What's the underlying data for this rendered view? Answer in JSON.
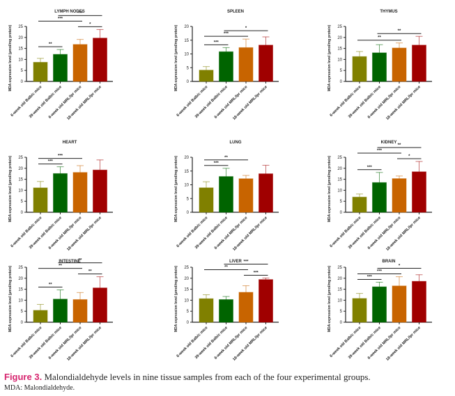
{
  "caption": {
    "figure_label": "Figure 3.",
    "text": "Malondialdehyde levels in nine tissue samples from each of the four experimental groups.",
    "abbreviation": "MDA: Malondialdehyde."
  },
  "chart_data": [
    {
      "type": "bar",
      "title": "LYMPH NODES",
      "categories": [
        "6-week old Balb/c mice",
        "39-week old Balb/c mice",
        "6-week old MRL/lpr mice",
        "18-week old MRL/lpr mice"
      ],
      "values": [
        8.7,
        12.3,
        16.8,
        19.7
      ],
      "errors": [
        1.8,
        2.2,
        2.3,
        3.9
      ],
      "ylabel": "MDA expression level (μmol/mg protein)",
      "ylim": [
        0,
        25
      ],
      "yticks": [
        0,
        5,
        10,
        15,
        20,
        25
      ],
      "colors": [
        "#808000",
        "#006400",
        "#c86400",
        "#a00000"
      ],
      "significance": [
        {
          "from": 0,
          "to": 1,
          "label": "**"
        },
        {
          "from": 0,
          "to": 2,
          "label": "***"
        },
        {
          "from": 1,
          "to": 3,
          "label": "***"
        },
        {
          "from": 2,
          "to": 3,
          "label": "*"
        }
      ]
    },
    {
      "type": "bar",
      "title": "SPLEEN",
      "categories": [
        "6-week old Balb/c mice",
        "39-week old Balb/c mice",
        "6-week old MRL/lpr mice",
        "18-week old MRL/lpr mice"
      ],
      "values": [
        4.1,
        10.8,
        12.3,
        13.2
      ],
      "errors": [
        1.3,
        1.5,
        3.1,
        3.0
      ],
      "ylabel": "MDA expression level (μmol/mg protein)",
      "ylim": [
        0,
        20
      ],
      "yticks": [
        0,
        5,
        10,
        15,
        20
      ],
      "colors": [
        "#808000",
        "#006400",
        "#c86400",
        "#a00000"
      ],
      "significance": [
        {
          "from": 0,
          "to": 1,
          "label": "***"
        },
        {
          "from": 0,
          "to": 2,
          "label": "***"
        },
        {
          "from": 1,
          "to": 3,
          "label": "*"
        }
      ]
    },
    {
      "type": "bar",
      "title": "THYMUS",
      "categories": [
        "6-week old Balb/c mice",
        "39-week old Balb/c mice",
        "6-week old MRL/lpr mice",
        "18-week old MRL/lpr mice"
      ],
      "values": [
        11.3,
        13.0,
        15.2,
        16.5
      ],
      "errors": [
        2.3,
        3.7,
        2.3,
        4.0
      ],
      "ylabel": "MDA expression level (μmol/mg protein)",
      "ylim": [
        0,
        25
      ],
      "yticks": [
        0,
        5,
        10,
        15,
        20,
        25
      ],
      "colors": [
        "#808000",
        "#006400",
        "#c86400",
        "#a00000"
      ],
      "significance": [
        {
          "from": 0,
          "to": 2,
          "label": "**"
        },
        {
          "from": 1,
          "to": 3,
          "label": "**"
        }
      ]
    },
    {
      "type": "bar",
      "title": "HEART",
      "categories": [
        "6-week old Balb/c mice",
        "39-week old Balb/c mice",
        "6-week old MRL/lpr mice",
        "18-week old MRL/lpr mice"
      ],
      "values": [
        11.1,
        17.6,
        18.1,
        19.2
      ],
      "errors": [
        2.9,
        3.1,
        3.1,
        4.6
      ],
      "ylabel": "MDA expression level (μmol/mg protein)",
      "ylim": [
        0,
        25
      ],
      "yticks": [
        0,
        5,
        10,
        15,
        20,
        25
      ],
      "colors": [
        "#808000",
        "#006400",
        "#c86400",
        "#a00000"
      ],
      "significance": [
        {
          "from": 0,
          "to": 1,
          "label": "***"
        },
        {
          "from": 0,
          "to": 2,
          "label": "***"
        }
      ]
    },
    {
      "type": "bar",
      "title": "LUNG",
      "categories": [
        "6-week old Balb/c mice",
        "39-week old Balb/c mice",
        "6-week old MRL/lpr mice",
        "18-week old MRL/lpr mice"
      ],
      "values": [
        8.9,
        13.0,
        12.2,
        14.0
      ],
      "errors": [
        2.2,
        3.0,
        1.2,
        3.1
      ],
      "ylabel": "MDA expression level (μmol/mg protein)",
      "ylim": [
        0,
        20
      ],
      "yticks": [
        0,
        5,
        10,
        15,
        20
      ],
      "colors": [
        "#808000",
        "#006400",
        "#c86400",
        "#a00000"
      ],
      "significance": [
        {
          "from": 0,
          "to": 1,
          "label": "***"
        },
        {
          "from": 0,
          "to": 2,
          "label": "**"
        }
      ]
    },
    {
      "type": "bar",
      "title": "KIDNEY",
      "categories": [
        "6-week old Balb/c mice",
        "39-week old Balb/c mice",
        "6-week old MRL/lpr mice",
        "18-week old MRL/lpr mice"
      ],
      "values": [
        6.9,
        13.5,
        15.3,
        18.4
      ],
      "errors": [
        1.4,
        4.6,
        1.2,
        4.7
      ],
      "ylabel": "MDA expression level (μmol/mg protein)",
      "ylim": [
        0,
        25
      ],
      "yticks": [
        0,
        5,
        10,
        15,
        20,
        25
      ],
      "colors": [
        "#808000",
        "#006400",
        "#c86400",
        "#a00000"
      ],
      "significance": [
        {
          "from": 0,
          "to": 1,
          "label": "***"
        },
        {
          "from": 0,
          "to": 2,
          "label": "***"
        },
        {
          "from": 2,
          "to": 3,
          "label": "*"
        },
        {
          "from": 1,
          "to": 3,
          "label": "**"
        }
      ]
    },
    {
      "type": "bar",
      "title": "INTESTINE",
      "categories": [
        "6-week old Balb/c mice",
        "39-week old Balb/c mice",
        "6-week old MRL/lpr mice",
        "18-week old MRL/lpr mice"
      ],
      "values": [
        5.4,
        10.5,
        10.3,
        15.6
      ],
      "errors": [
        2.7,
        4.2,
        3.2,
        5.1
      ],
      "ylabel": "MDA expression level (μmol/mg protein)",
      "ylim": [
        0,
        25
      ],
      "yticks": [
        0,
        5,
        10,
        15,
        20,
        25
      ],
      "colors": [
        "#808000",
        "#006400",
        "#c86400",
        "#a00000"
      ],
      "significance": [
        {
          "from": 0,
          "to": 1,
          "label": "**"
        },
        {
          "from": 0,
          "to": 2,
          "label": "**"
        },
        {
          "from": 2,
          "to": 3,
          "label": "**"
        },
        {
          "from": 1,
          "to": 3,
          "label": "**"
        }
      ]
    },
    {
      "type": "bar",
      "title": "LIVER",
      "categories": [
        "6-week old Balb/c mice",
        "39-week old Balb/c mice",
        "6-week old MRL/lpr mice",
        "18-week old MRL/lpr mice"
      ],
      "values": [
        10.7,
        10.3,
        13.6,
        19.4
      ],
      "errors": [
        1.8,
        1.4,
        3.0,
        0.7
      ],
      "ylabel": "MDA expression level (μmol/mg protein)",
      "ylim": [
        0,
        25
      ],
      "yticks": [
        0,
        5,
        10,
        15,
        20,
        25
      ],
      "colors": [
        "#808000",
        "#006400",
        "#c86400",
        "#a00000"
      ],
      "significance": [
        {
          "from": 0,
          "to": 2,
          "label": "**"
        },
        {
          "from": 2,
          "to": 3,
          "label": "***"
        },
        {
          "from": 1,
          "to": 3,
          "label": "***"
        }
      ]
    },
    {
      "type": "bar",
      "title": "BRAIN",
      "categories": [
        "6-week old Balb/c mice",
        "39-week old Balb/c mice",
        "6-week old MRL/lpr mice",
        "18-week old MRL/lpr mice"
      ],
      "values": [
        10.8,
        16.1,
        16.5,
        18.6
      ],
      "errors": [
        2.3,
        2.1,
        4.2,
        3.0
      ],
      "ylabel": "MDA expression level (μmol/mg protein)",
      "ylim": [
        0,
        25
      ],
      "yticks": [
        0,
        5,
        10,
        15,
        20,
        25
      ],
      "colors": [
        "#808000",
        "#006400",
        "#c86400",
        "#a00000"
      ],
      "significance": [
        {
          "from": 0,
          "to": 1,
          "label": "***"
        },
        {
          "from": 0,
          "to": 2,
          "label": "***"
        },
        {
          "from": 1,
          "to": 3,
          "label": "*"
        }
      ]
    }
  ]
}
